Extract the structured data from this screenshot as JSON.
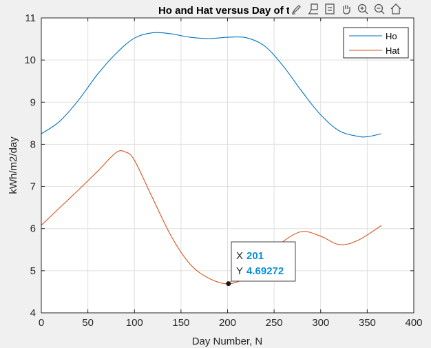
{
  "chart_data": {
    "type": "line",
    "title": "Ho and Hat versus Day of th",
    "xlabel": "Day Number, N",
    "ylabel": "kWh/m2/day",
    "xlim": [
      0,
      400
    ],
    "ylim": [
      4,
      11
    ],
    "xticks": [
      0,
      50,
      100,
      150,
      200,
      250,
      300,
      350,
      400
    ],
    "yticks": [
      4,
      5,
      6,
      7,
      8,
      9,
      10,
      11
    ],
    "grid": true,
    "legend_position": "top-right",
    "series": [
      {
        "name": "Ho",
        "color": "#0072BD",
        "x": [
          0,
          20,
          40,
          60,
          80,
          100,
          120,
          140,
          160,
          180,
          200,
          220,
          240,
          260,
          280,
          300,
          320,
          340,
          350,
          365
        ],
        "y": [
          8.25,
          8.55,
          9.05,
          9.65,
          10.15,
          10.52,
          10.65,
          10.62,
          10.54,
          10.51,
          10.54,
          10.53,
          10.33,
          9.85,
          9.25,
          8.7,
          8.32,
          8.19,
          8.18,
          8.25
        ]
      },
      {
        "name": "Hat",
        "color": "#D95319",
        "x": [
          0,
          20,
          40,
          60,
          80,
          90,
          100,
          120,
          140,
          160,
          180,
          201,
          220,
          240,
          260,
          280,
          300,
          320,
          340,
          365
        ],
        "y": [
          6.08,
          6.5,
          6.92,
          7.35,
          7.8,
          7.82,
          7.62,
          6.7,
          5.8,
          5.15,
          4.82,
          4.69,
          4.85,
          5.3,
          5.7,
          5.93,
          5.82,
          5.62,
          5.72,
          6.07
        ]
      }
    ],
    "datatip": {
      "x_label": "X",
      "x_value": "201",
      "y_label": "Y",
      "y_value": "4.69272",
      "x": 201,
      "y": 4.69272
    }
  },
  "toolbar": {
    "icons": [
      "brush-icon",
      "data-tip-icon",
      "data-cursor-icon",
      "pan-hand-icon",
      "zoom-in-icon",
      "zoom-out-icon",
      "home-icon"
    ]
  }
}
